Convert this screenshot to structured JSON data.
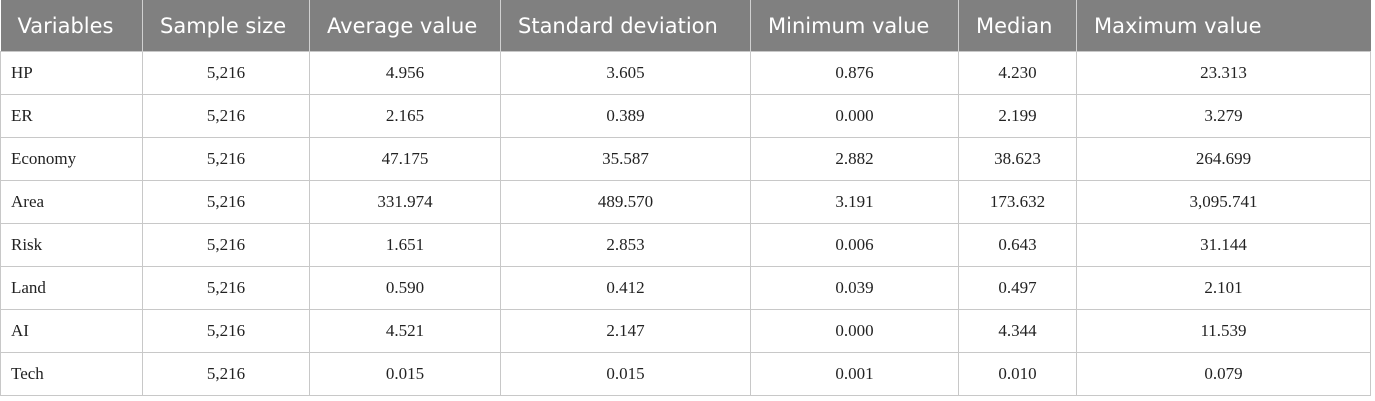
{
  "table": {
    "header": [
      "Variables",
      "Sample size",
      "Average value",
      "Standard deviation",
      "Minimum value",
      "Median",
      "Maximum value"
    ],
    "rows": [
      [
        "HP",
        "5,216",
        "4.956",
        "3.605",
        "0.876",
        "4.230",
        "23.313"
      ],
      [
        "ER",
        "5,216",
        "2.165",
        "0.389",
        "0.000",
        "2.199",
        "3.279"
      ],
      [
        "Economy",
        "5,216",
        "47.175",
        "35.587",
        "2.882",
        "38.623",
        "264.699"
      ],
      [
        "Area",
        "5,216",
        "331.974",
        "489.570",
        "3.191",
        "173.632",
        "3,095.741"
      ],
      [
        "Risk",
        "5,216",
        "1.651",
        "2.853",
        "0.006",
        "0.643",
        "31.144"
      ],
      [
        "Land",
        "5,216",
        "0.590",
        "0.412",
        "0.039",
        "0.497",
        "2.101"
      ],
      [
        "AI",
        "5,216",
        "4.521",
        "2.147",
        "0.000",
        "4.344",
        "11.539"
      ],
      [
        "Tech",
        "5,216",
        "0.015",
        "0.015",
        "0.001",
        "0.010",
        "0.079"
      ]
    ]
  }
}
